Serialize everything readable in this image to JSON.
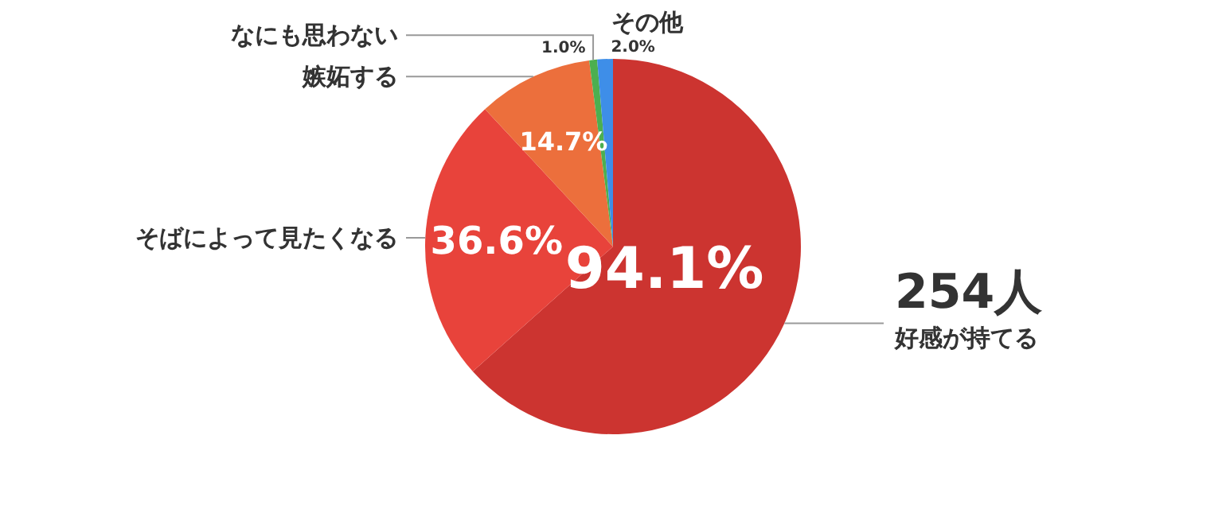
{
  "chart_data": {
    "type": "pie",
    "categories": [
      "好感が持てる",
      "そばによって見たくなる",
      "嫉妬する",
      "なにも思わない",
      "その他"
    ],
    "values": [
      94.1,
      36.6,
      14.7,
      1.0,
      2.0
    ],
    "value_labels": [
      "94.1%",
      "36.6%",
      "14.7%",
      "1.0%",
      "2.0%"
    ],
    "colors": [
      "#cc3430",
      "#e8433b",
      "#ec6f3c",
      "#4caf50",
      "#3e8ee8"
    ],
    "annotations": [
      "254人"
    ]
  }
}
